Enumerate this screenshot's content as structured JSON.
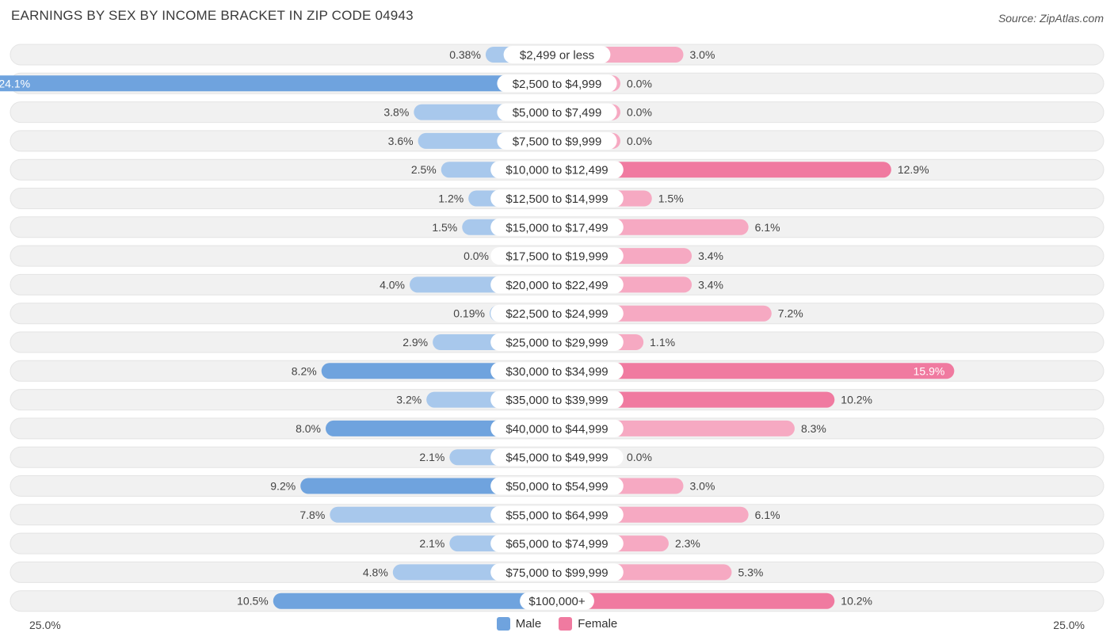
{
  "header": {
    "title": "EARNINGS BY SEX BY INCOME BRACKET IN ZIP CODE 04943",
    "source": "Source: ZipAtlas.com"
  },
  "legend": {
    "male_label": "Male",
    "female_label": "Female"
  },
  "axis": {
    "left_label": "25.0%",
    "right_label": "25.0%"
  },
  "colors": {
    "male": "#6fa3de",
    "male_light": "#a8c8ec",
    "female": "#f07aa0",
    "female_light": "#f6a9c2",
    "row_bg": "#f1f1f1"
  },
  "chart_data": {
    "type": "bar",
    "orientation": "horizontal-diverging",
    "title": "EARNINGS BY SEX BY INCOME BRACKET IN ZIP CODE 04943",
    "xlim": [
      -25,
      25
    ],
    "categories": [
      "$2,499 or less",
      "$2,500 to $4,999",
      "$5,000 to $7,499",
      "$7,500 to $9,999",
      "$10,000 to $12,499",
      "$12,500 to $14,999",
      "$15,000 to $17,499",
      "$17,500 to $19,999",
      "$20,000 to $22,499",
      "$22,500 to $24,999",
      "$25,000 to $29,999",
      "$30,000 to $34,999",
      "$35,000 to $39,999",
      "$40,000 to $44,999",
      "$45,000 to $49,999",
      "$50,000 to $54,999",
      "$55,000 to $64,999",
      "$65,000 to $74,999",
      "$75,000 to $99,999",
      "$100,000+"
    ],
    "series": [
      {
        "name": "Male",
        "values": [
          0.38,
          24.1,
          3.8,
          3.6,
          2.5,
          1.2,
          1.5,
          0.0,
          4.0,
          0.19,
          2.9,
          8.2,
          3.2,
          8.0,
          2.1,
          9.2,
          7.8,
          2.1,
          4.8,
          10.5
        ],
        "labels": [
          "0.38%",
          "24.1%",
          "3.8%",
          "3.6%",
          "2.5%",
          "1.2%",
          "1.5%",
          "0.0%",
          "4.0%",
          "0.19%",
          "2.9%",
          "8.2%",
          "3.2%",
          "8.0%",
          "2.1%",
          "9.2%",
          "7.8%",
          "2.1%",
          "4.8%",
          "10.5%"
        ]
      },
      {
        "name": "Female",
        "values": [
          3.0,
          0.0,
          0.0,
          0.0,
          12.9,
          1.5,
          6.1,
          3.4,
          3.4,
          7.2,
          1.1,
          15.9,
          10.2,
          8.3,
          0.0,
          3.0,
          6.1,
          2.3,
          5.3,
          10.2
        ],
        "labels": [
          "3.0%",
          "0.0%",
          "0.0%",
          "0.0%",
          "12.9%",
          "1.5%",
          "6.1%",
          "3.4%",
          "3.4%",
          "7.2%",
          "1.1%",
          "15.9%",
          "10.2%",
          "8.3%",
          "0.0%",
          "3.0%",
          "6.1%",
          "2.3%",
          "5.3%",
          "10.2%"
        ]
      }
    ]
  }
}
